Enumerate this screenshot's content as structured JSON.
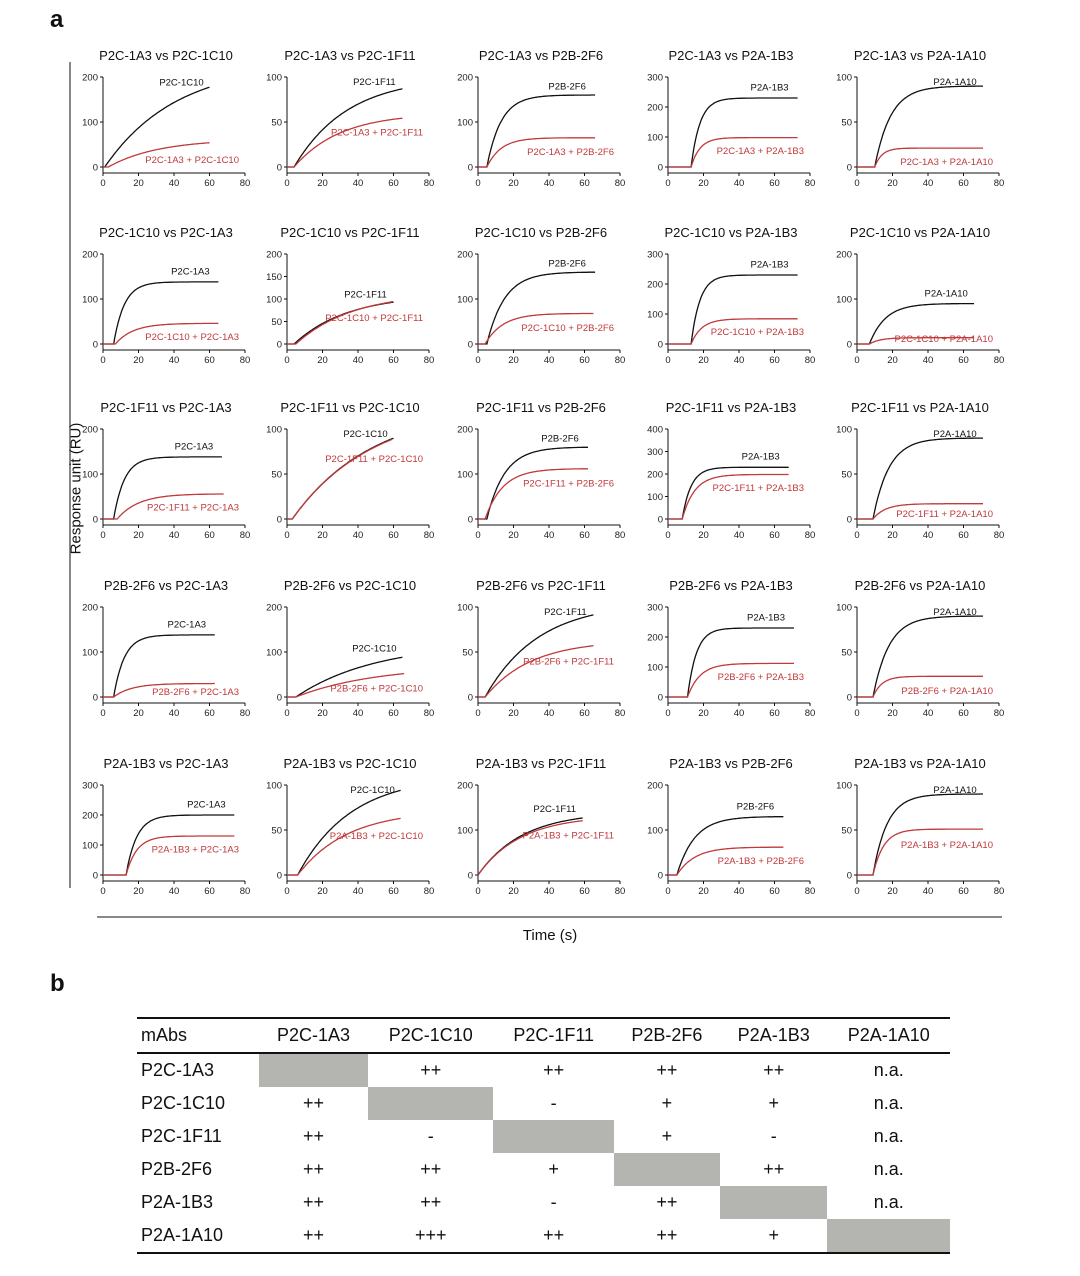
{
  "panel_a_label": "a",
  "panel_b_label": "b",
  "ylabel": "Response unit (RU)",
  "xlabel": "Time (s)",
  "colors": {
    "single": "#111111",
    "combined": "#c0393b",
    "diag": "#b4b4b1"
  },
  "chart_data": {
    "type": "line",
    "title": "Competitive binding sensorgrams",
    "xlabel": "Time (s)",
    "ylabel": "Response unit (RU)",
    "xlim": [
      0,
      80
    ],
    "xticks": [
      0,
      20,
      40,
      60,
      80
    ],
    "panels": [
      {
        "title": "P2C-1A3 vs P2C-1C10",
        "ylim": [
          0,
          200
        ],
        "yticks": [
          0,
          100,
          200
        ],
        "single": {
          "label": "P2C-1C10",
          "t0": 1,
          "plateau": 230,
          "tau": 40,
          "end": 60,
          "final": 163
        },
        "combined": {
          "label": "P2C-1A3 + P2C-1C10",
          "t0": 3,
          "plateau": 62,
          "tau": 28,
          "end": 60,
          "final": 45
        }
      },
      {
        "title": "P2C-1A3 vs P2C-1F11",
        "ylim": [
          0,
          100
        ],
        "yticks": [
          0,
          50,
          100
        ],
        "single": {
          "label": "P2C-1F11",
          "t0": 4,
          "plateau": 100,
          "tau": 30,
          "end": 65,
          "final": 87
        },
        "combined": {
          "label": "P2C-1A3 + P2C-1F11",
          "t0": 4,
          "plateau": 60,
          "tau": 26,
          "end": 65,
          "final": 53
        }
      },
      {
        "title": "P2C-1A3 vs P2B-2F6",
        "ylim": [
          0,
          200
        ],
        "yticks": [
          0,
          100,
          200
        ],
        "single": {
          "label": "P2B-2F6",
          "t0": 5,
          "plateau": 160,
          "tau": 8,
          "end": 66,
          "final": 155
        },
        "combined": {
          "label": "P2C-1A3 + P2B-2F6",
          "t0": 5,
          "plateau": 65,
          "tau": 8,
          "end": 66,
          "final": 62
        }
      },
      {
        "title": "P2C-1A3 vs P2A-1B3",
        "ylim": [
          0,
          300
        ],
        "yticks": [
          0,
          100,
          200,
          300
        ],
        "single": {
          "label": "P2A-1B3",
          "t0": 13,
          "plateau": 230,
          "tau": 5,
          "end": 73,
          "final": 229
        },
        "combined": {
          "label": "P2C-1A3 + P2A-1B3",
          "t0": 13,
          "plateau": 98,
          "tau": 5,
          "end": 73,
          "final": 97
        }
      },
      {
        "title": "P2C-1A3 vs P2A-1A10",
        "ylim": [
          0,
          100
        ],
        "yticks": [
          0,
          50,
          100
        ],
        "single": {
          "label": "P2A-1A10",
          "t0": 10,
          "plateau": 90,
          "tau": 9,
          "end": 71,
          "final": 88
        },
        "combined": {
          "label": "P2C-1A3 + P2A-1A10",
          "t0": 10,
          "plateau": 21,
          "tau": 4,
          "end": 71,
          "final": 19
        }
      },
      {
        "title": "P2C-1C10 vs P2C-1A3",
        "ylim": [
          0,
          200
        ],
        "yticks": [
          0,
          100,
          200
        ],
        "single": {
          "label": "P2C-1A3",
          "t0": 6,
          "plateau": 138,
          "tau": 6,
          "end": 65,
          "final": 137
        },
        "combined": {
          "label": "P2C-1C10 + P2C-1A3",
          "t0": 7,
          "plateau": 46,
          "tau": 10,
          "end": 65,
          "final": 45
        }
      },
      {
        "title": "P2C-1C10 vs P2C-1F11",
        "ylim": [
          0,
          200
        ],
        "yticks": [
          0,
          50,
          100,
          150,
          200
        ],
        "single": {
          "label": "P2C-1F11",
          "t0": 4,
          "plateau": 110,
          "tau": 30,
          "end": 60,
          "final": 86
        },
        "combined": {
          "label": "P2C-1C10 + P2C-1F11",
          "t0": 5,
          "plateau": 115,
          "tau": 32,
          "end": 60,
          "final": 87
        }
      },
      {
        "title": "P2C-1C10 vs P2B-2F6",
        "ylim": [
          0,
          200
        ],
        "yticks": [
          0,
          100,
          200
        ],
        "single": {
          "label": "P2B-2F6",
          "t0": 5,
          "plateau": 160,
          "tau": 10,
          "end": 66,
          "final": 155
        },
        "combined": {
          "label": "P2C-1C10 + P2B-2F6",
          "t0": 4,
          "plateau": 68,
          "tau": 10,
          "end": 65,
          "final": 65
        }
      },
      {
        "title": "P2C-1C10 vs P2A-1B3",
        "ylim": [
          0,
          300
        ],
        "yticks": [
          0,
          100,
          200,
          300
        ],
        "single": {
          "label": "P2A-1B3",
          "t0": 13,
          "plateau": 230,
          "tau": 5,
          "end": 73,
          "final": 229
        },
        "combined": {
          "label": "P2C-1C10 + P2A-1B3",
          "t0": 13,
          "plateau": 84,
          "tau": 6,
          "end": 73,
          "final": 83
        }
      },
      {
        "title": "P2C-1C10 vs P2A-1A10",
        "ylim": [
          0,
          200
        ],
        "yticks": [
          0,
          100,
          200
        ],
        "single": {
          "label": "P2A-1A10",
          "t0": 7,
          "plateau": 90,
          "tau": 9,
          "end": 66,
          "final": 88
        },
        "combined": {
          "label": "P2C-1C10 + P2A-1A10",
          "t0": 7,
          "plateau": 14,
          "tau": 6,
          "end": 66,
          "final": 13
        }
      },
      {
        "title": "P2C-1F11 vs P2C-1A3",
        "ylim": [
          0,
          200
        ],
        "yticks": [
          0,
          100,
          200
        ],
        "single": {
          "label": "P2C-1A3",
          "t0": 6,
          "plateau": 138,
          "tau": 6,
          "end": 67,
          "final": 137
        },
        "combined": {
          "label": "P2C-1F11 + P2C-1A3",
          "t0": 8,
          "plateau": 56,
          "tau": 12,
          "end": 68,
          "final": 55
        }
      },
      {
        "title": "P2C-1F11 vs P2C-1C10",
        "ylim": [
          0,
          100
        ],
        "yticks": [
          0,
          50,
          100
        ],
        "single": {
          "label": "P2C-1C10",
          "t0": 3,
          "plateau": 125,
          "tau": 45,
          "end": 60,
          "final": 82
        },
        "combined": {
          "label": "P2C-1F11 + P2C-1C10",
          "t0": 3,
          "plateau": 124,
          "tau": 45,
          "end": 59,
          "final": 81
        }
      },
      {
        "title": "P2C-1F11 vs P2B-2F6",
        "ylim": [
          0,
          200
        ],
        "yticks": [
          0,
          100,
          200
        ],
        "single": {
          "label": "P2B-2F6",
          "t0": 5,
          "plateau": 160,
          "tau": 10,
          "end": 62,
          "final": 155
        },
        "combined": {
          "label": "P2C-1F11 + P2B-2F6",
          "t0": 4,
          "plateau": 112,
          "tau": 10,
          "end": 62,
          "final": 108
        }
      },
      {
        "title": "P2C-1F11 vs P2A-1B3",
        "ylim": [
          0,
          400
        ],
        "yticks": [
          0,
          100,
          200,
          300,
          400
        ],
        "single": {
          "label": "P2A-1B3",
          "t0": 8,
          "plateau": 230,
          "tau": 5,
          "end": 68,
          "final": 229
        },
        "combined": {
          "label": "P2C-1F11 + P2A-1B3",
          "t0": 8,
          "plateau": 198,
          "tau": 7,
          "end": 68,
          "final": 196
        }
      },
      {
        "title": "P2C-1F11 vs P2A-1A10",
        "ylim": [
          0,
          100
        ],
        "yticks": [
          0,
          50,
          100
        ],
        "single": {
          "label": "P2A-1A10",
          "t0": 9,
          "plateau": 90,
          "tau": 9,
          "end": 71,
          "final": 88
        },
        "combined": {
          "label": "P2C-1F11 + P2A-1A10",
          "t0": 9,
          "plateau": 17,
          "tau": 7,
          "end": 71,
          "final": 16
        }
      },
      {
        "title": "P2B-2F6 vs P2C-1A3",
        "ylim": [
          0,
          200
        ],
        "yticks": [
          0,
          100,
          200
        ],
        "single": {
          "label": "P2C-1A3",
          "t0": 6,
          "plateau": 138,
          "tau": 6,
          "end": 63,
          "final": 137
        },
        "combined": {
          "label": "P2B-2F6 + P2C-1A3",
          "t0": 6,
          "plateau": 30,
          "tau": 10,
          "end": 63,
          "final": 29
        }
      },
      {
        "title": "P2B-2F6 vs P2C-1C10",
        "ylim": [
          0,
          200
        ],
        "yticks": [
          0,
          100,
          200
        ],
        "single": {
          "label": "P2C-1C10",
          "t0": 5,
          "plateau": 120,
          "tau": 45,
          "end": 65,
          "final": 83
        },
        "combined": {
          "label": "P2B-2F6 + P2C-1C10",
          "t0": 5,
          "plateau": 70,
          "tau": 45,
          "end": 66,
          "final": 48
        }
      },
      {
        "title": "P2B-2F6 vs P2C-1F11",
        "ylim": [
          0,
          100
        ],
        "yticks": [
          0,
          50,
          100
        ],
        "single": {
          "label": "P2C-1F11",
          "t0": 4,
          "plateau": 105,
          "tau": 30,
          "end": 65,
          "final": 87
        },
        "combined": {
          "label": "P2B-2F6 + P2C-1F11",
          "t0": 4,
          "plateau": 63,
          "tau": 26,
          "end": 65,
          "final": 54
        }
      },
      {
        "title": "P2B-2F6 vs P2A-1B3",
        "ylim": [
          0,
          300
        ],
        "yticks": [
          0,
          100,
          200,
          300
        ],
        "single": {
          "label": "P2A-1B3",
          "t0": 11,
          "plateau": 230,
          "tau": 5,
          "end": 71,
          "final": 229
        },
        "combined": {
          "label": "P2B-2F6 + P2A-1B3",
          "t0": 11,
          "plateau": 112,
          "tau": 7,
          "end": 71,
          "final": 110
        }
      },
      {
        "title": "P2B-2F6 vs P2A-1A10",
        "ylim": [
          0,
          100
        ],
        "yticks": [
          0,
          50,
          100
        ],
        "single": {
          "label": "P2A-1A10",
          "t0": 9,
          "plateau": 90,
          "tau": 9,
          "end": 71,
          "final": 88
        },
        "combined": {
          "label": "P2B-2F6 + P2A-1A10",
          "t0": 9,
          "plateau": 23,
          "tau": 5,
          "end": 71,
          "final": 21
        }
      },
      {
        "title": "P2A-1B3 vs P2C-1A3",
        "ylim": [
          0,
          300
        ],
        "yticks": [
          0,
          100,
          200,
          300
        ],
        "single": {
          "label": "P2C-1A3",
          "t0": 13,
          "plateau": 200,
          "tau": 6,
          "end": 74,
          "final": 199
        },
        "combined": {
          "label": "P2A-1B3 + P2C-1A3",
          "t0": 13,
          "plateau": 130,
          "tau": 6,
          "end": 74,
          "final": 129
        }
      },
      {
        "title": "P2A-1B3 vs P2C-1C10",
        "ylim": [
          0,
          100
        ],
        "yticks": [
          0,
          50,
          100
        ],
        "single": {
          "label": "P2C-1C10",
          "t0": 6,
          "plateau": 110,
          "tau": 30,
          "end": 64,
          "final": 84
        },
        "combined": {
          "label": "P2A-1B3 + P2C-1C10",
          "t0": 6,
          "plateau": 72,
          "tau": 28,
          "end": 64,
          "final": 58
        }
      },
      {
        "title": "P2A-1B3 vs P2C-1F11",
        "ylim": [
          0,
          200
        ],
        "yticks": [
          0,
          100,
          200
        ],
        "single": {
          "label": "P2C-1F11",
          "t0": 0,
          "plateau": 140,
          "tau": 25,
          "end": 59,
          "final": 122
        },
        "combined": {
          "label": "P2A-1B3 + P2C-1F11",
          "t0": 0,
          "plateau": 132,
          "tau": 24,
          "end": 59,
          "final": 117
        }
      },
      {
        "title": "P2A-1B3 vs P2B-2F6",
        "ylim": [
          0,
          200
        ],
        "yticks": [
          0,
          100,
          200
        ],
        "single": {
          "label": "P2B-2F6",
          "t0": 5,
          "plateau": 130,
          "tau": 10,
          "end": 65,
          "final": 128
        },
        "combined": {
          "label": "P2A-1B3 + P2B-2F6",
          "t0": 5,
          "plateau": 62,
          "tau": 10,
          "end": 65,
          "final": 60
        }
      },
      {
        "title": "P2A-1B3 vs P2A-1A10",
        "ylim": [
          0,
          100
        ],
        "yticks": [
          0,
          50,
          100
        ],
        "single": {
          "label": "P2A-1A10",
          "t0": 9,
          "plateau": 90,
          "tau": 8,
          "end": 71,
          "final": 88
        },
        "combined": {
          "label": "P2A-1B3  + P2A-1A10",
          "t0": 9,
          "plateau": 51,
          "tau": 6,
          "end": 71,
          "final": 48
        }
      }
    ]
  },
  "table": {
    "headers": [
      "mAbs",
      "P2C-1A3",
      "P2C-1C10",
      "P2C-1F11",
      "P2B-2F6",
      "P2A-1B3",
      "P2A-1A10"
    ],
    "rows": [
      {
        "label": "P2C-1A3",
        "cells": [
          "",
          "++",
          "++",
          "++",
          "++",
          "n.a."
        ]
      },
      {
        "label": "P2C-1C10",
        "cells": [
          "++",
          "",
          "-",
          "+",
          "+",
          "n.a."
        ]
      },
      {
        "label": "P2C-1F11",
        "cells": [
          "++",
          "-",
          "",
          "+",
          "-",
          "n.a."
        ]
      },
      {
        "label": "P2B-2F6",
        "cells": [
          "++",
          "++",
          "+",
          "",
          "++",
          "n.a."
        ]
      },
      {
        "label": "P2A-1B3",
        "cells": [
          "++",
          "++",
          "-",
          "++",
          "",
          "n.a."
        ]
      },
      {
        "label": "P2A-1A10",
        "cells": [
          "++",
          "+++",
          "++",
          "++",
          "+",
          ""
        ]
      }
    ]
  }
}
